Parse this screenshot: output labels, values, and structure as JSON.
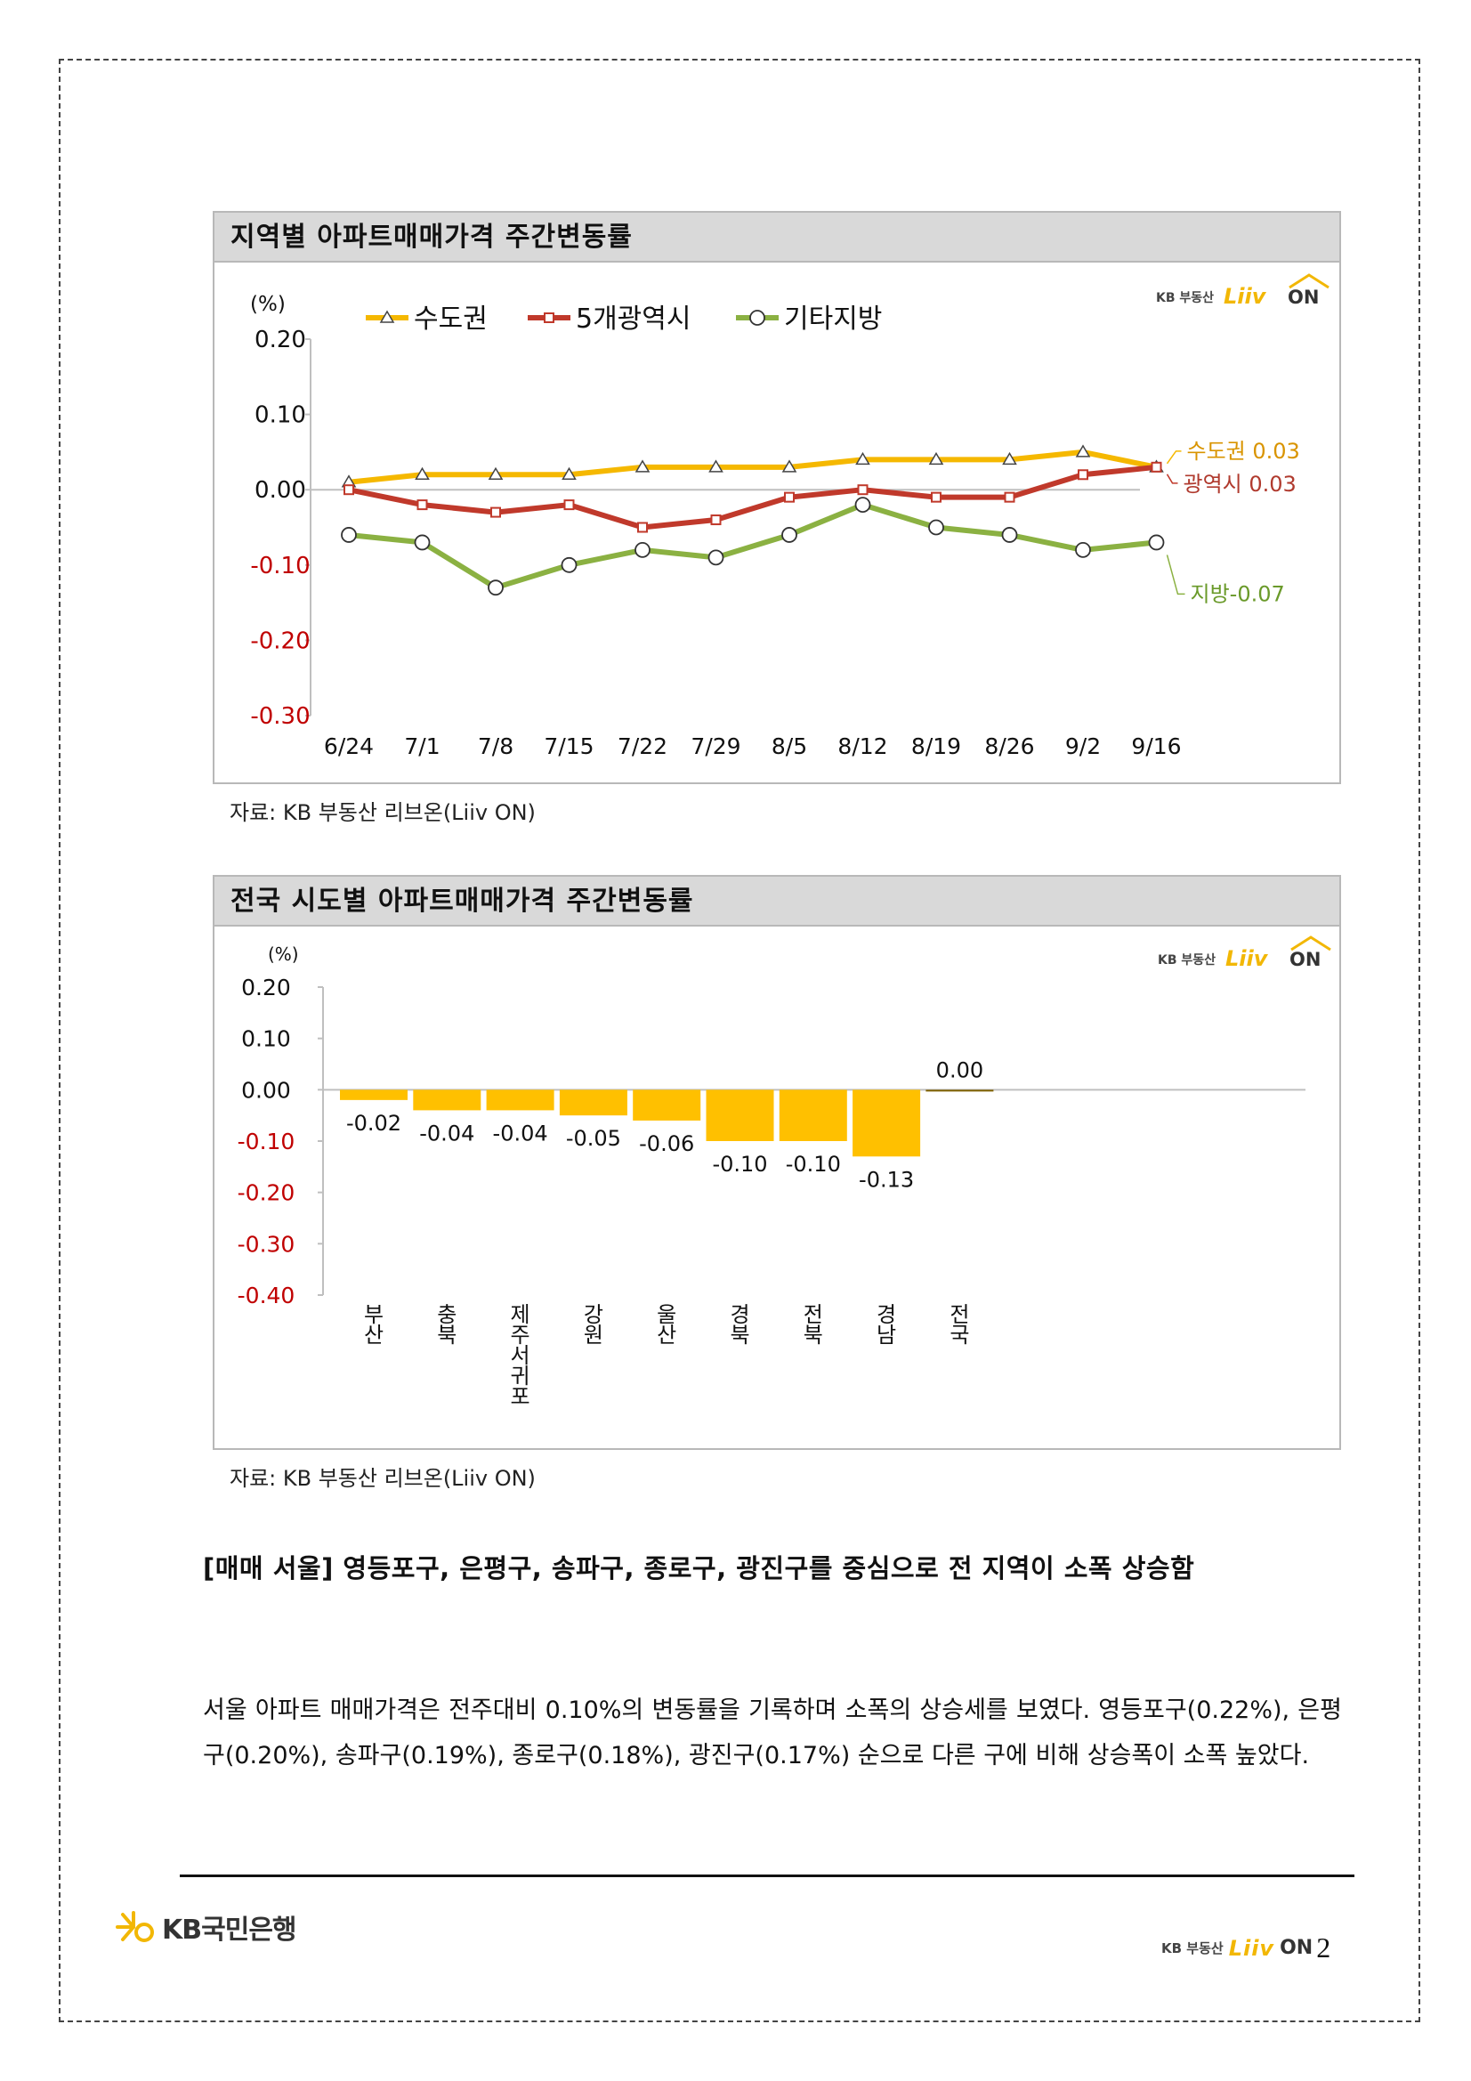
{
  "brand": {
    "liiv_small": "KB 부동산",
    "liiv_word": "Liiv",
    "liiv_on": "ON",
    "bank_name": "KB국민은행",
    "yellow": "#f2b705"
  },
  "page_number": "2",
  "charts": {
    "line": {
      "header": "지역별 아파트매매가격 주간변동률",
      "source": "자료: KB 부동산 리브온(Liiv ON)",
      "annotations": {
        "capital": "수도권 0.03",
        "metro": "광역시 0.03",
        "local": "지방-0.07"
      }
    },
    "bar": {
      "header": "전국 시도별 아파트매매가격 주간변동률",
      "source": "자료: KB 부동산 리브온(Liiv ON)"
    }
  },
  "chart_data": [
    {
      "type": "line",
      "title": "지역별 아파트매매가격 주간변동률",
      "ylabel": "(%)",
      "ylim": [
        -0.3,
        0.2
      ],
      "yticks": [
        "0.20",
        "0.10",
        "0.00",
        "-0.10",
        "-0.20",
        "-0.30"
      ],
      "categories": [
        "6/24",
        "7/1",
        "7/8",
        "7/15",
        "7/22",
        "7/29",
        "8/5",
        "8/12",
        "8/19",
        "8/26",
        "9/2",
        "9/16"
      ],
      "legend_position": "top",
      "series": [
        {
          "name": "수도권",
          "color": "#f5b800",
          "marker": "triangle",
          "values": [
            0.01,
            0.02,
            0.02,
            0.02,
            0.03,
            0.03,
            0.03,
            0.04,
            0.04,
            0.04,
            0.05,
            0.03
          ]
        },
        {
          "name": "5개광역시",
          "color": "#c0392b",
          "marker": "square",
          "values": [
            0.0,
            -0.02,
            -0.03,
            -0.02,
            -0.05,
            -0.04,
            -0.01,
            0.0,
            -0.01,
            -0.01,
            0.02,
            0.03
          ]
        },
        {
          "name": "기타지방",
          "color": "#8bb142",
          "marker": "circle",
          "values": [
            -0.06,
            -0.07,
            -0.13,
            -0.1,
            -0.08,
            -0.09,
            -0.06,
            -0.02,
            -0.05,
            -0.06,
            -0.08,
            -0.07
          ]
        }
      ]
    },
    {
      "type": "bar",
      "title": "전국 시도별 아파트매매가격 주간변동률",
      "ylabel": "(%)",
      "ylim": [
        -0.4,
        0.2
      ],
      "yticks": [
        "0.20",
        "0.10",
        "0.00",
        "-0.10",
        "-0.20",
        "-0.30",
        "-0.40"
      ],
      "categories": [
        "부산",
        "충북",
        "제주서귀포",
        "강원",
        "울산",
        "경북",
        "전북",
        "경남",
        "전국"
      ],
      "values": [
        -0.02,
        -0.04,
        -0.04,
        -0.05,
        -0.06,
        -0.1,
        -0.1,
        -0.13,
        0.0
      ],
      "value_labels": [
        "-0.02",
        "-0.04",
        "-0.04",
        "-0.05",
        "-0.06",
        "-0.10",
        "-0.10",
        "-0.13",
        "0.00"
      ],
      "bar_color": "#ffc000"
    }
  ],
  "text": {
    "heading": "[매매 서울] 영등포구, 은평구, 송파구, 종로구, 광진구를 중심으로 전 지역이 소폭 상승함",
    "paragraph": "서울 아파트 매매가격은 전주대비 0.10%의 변동률을 기록하며 소폭의 상승세를 보였다. 영등포구(0.22%), 은평구(0.20%), 송파구(0.19%), 종로구(0.18%), 광진구(0.17%) 순으로 다른 구에 비해 상승폭이 소폭 높았다."
  }
}
